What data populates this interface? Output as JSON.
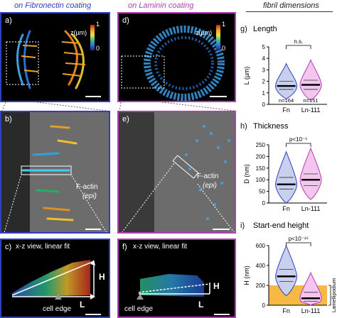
{
  "headers": {
    "fibronectin": "on Fibronectin coating",
    "laminin": "on Laminin coating",
    "fibril": "fibril dimensions"
  },
  "panels": {
    "a": "a)",
    "b": "b)",
    "c": "c)",
    "d": "d)",
    "e": "e)",
    "f": "f)",
    "g": "g)",
    "h": "h)",
    "i": "i)"
  },
  "zscale": {
    "max": "1",
    "label": "z(µm)",
    "min": "0"
  },
  "factin": {
    "label": "F-actin",
    "sub": "(epi)"
  },
  "xz": {
    "label": "x-z view, linear fit",
    "cell_edge": "cell edge",
    "H": "H",
    "L": "L"
  },
  "charts": {
    "length": {
      "title": "Length",
      "ylabel": "L (µm)",
      "yticks": [
        "0",
        "1",
        "2",
        "3",
        "4",
        "5"
      ],
      "categories": [
        "Fn",
        "Ln-111"
      ],
      "sig": "n.s.",
      "n_fn": "n=164",
      "n_ln": "n=151"
    },
    "thickness": {
      "title": "Thickness",
      "ylabel": "D (nm)",
      "yticks": [
        "0",
        "50",
        "100",
        "150",
        "200",
        "250"
      ],
      "categories": [
        "Fn",
        "Ln-111"
      ],
      "sig": "p<10⁻⁵"
    },
    "height": {
      "title": "Start-end height",
      "ylabel": "H (nm)",
      "yticks": [
        "0",
        "200",
        "400",
        "600"
      ],
      "categories": [
        "Fn",
        "Ln-111"
      ],
      "sig": "p<10⁻¹⁵",
      "band": "Lamellipodium"
    }
  },
  "chart_data": [
    {
      "type": "violin",
      "title": "Length",
      "ylabel": "L (µm)",
      "ylim": [
        0,
        5
      ],
      "categories": [
        "Fn",
        "Ln-111"
      ],
      "series": [
        {
          "name": "Fn",
          "median": 1.6,
          "q1": 1.3,
          "q3": 2.0
        },
        {
          "name": "Ln-111",
          "median": 1.7,
          "q1": 1.3,
          "q3": 2.1
        }
      ]
    },
    {
      "type": "violin",
      "title": "Thickness",
      "ylabel": "D (nm)",
      "ylim": [
        0,
        250
      ],
      "categories": [
        "Fn",
        "Ln-111"
      ],
      "series": [
        {
          "name": "Fn",
          "median": 80,
          "q1": 60,
          "q3": 110
        },
        {
          "name": "Ln-111",
          "median": 100,
          "q1": 75,
          "q3": 125
        }
      ]
    },
    {
      "type": "violin",
      "title": "Start-end height",
      "ylabel": "H (nm)",
      "ylim": [
        0,
        600
      ],
      "categories": [
        "Fn",
        "Ln-111"
      ],
      "series": [
        {
          "name": "Fn",
          "median": 290,
          "q1": 240,
          "q3": 360
        },
        {
          "name": "Ln-111",
          "median": 70,
          "q1": 40,
          "q3": 130
        }
      ],
      "band": [
        0,
        200
      ]
    }
  ],
  "colors": {
    "fn": "#2e3fbf",
    "ln": "#b23fb2",
    "band": "#f5b944"
  }
}
